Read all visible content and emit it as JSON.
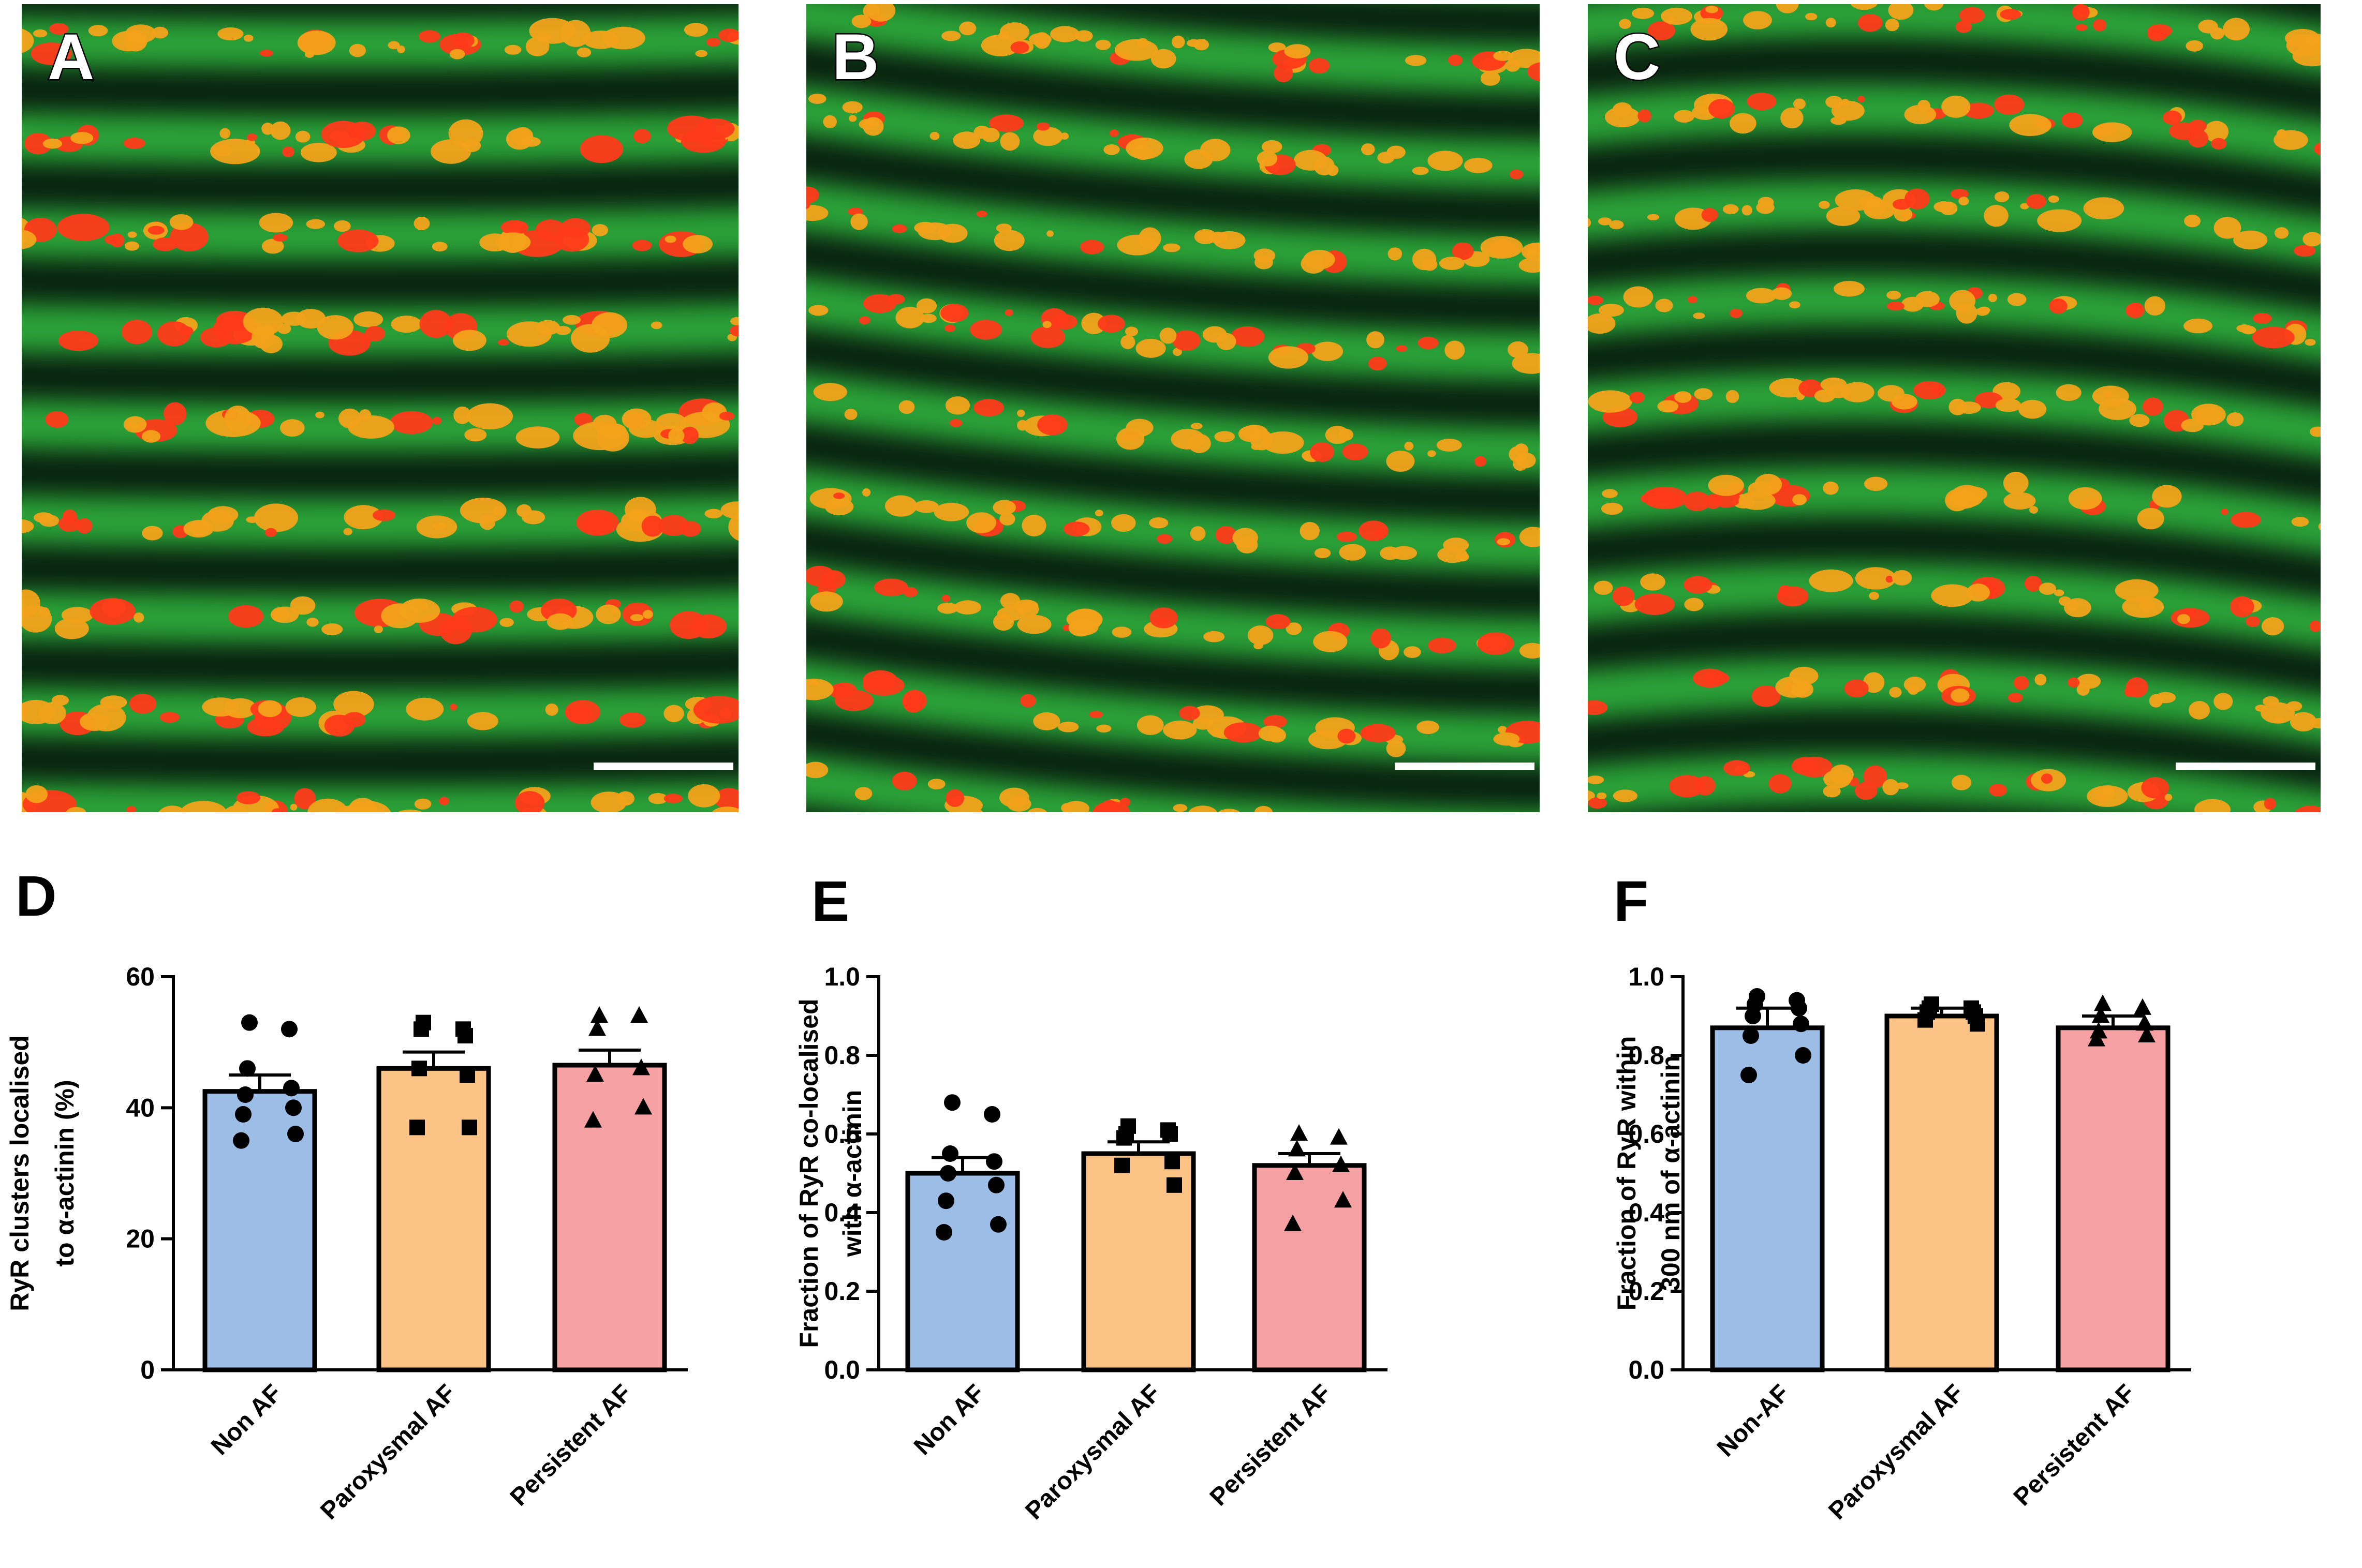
{
  "micrographs": [
    {
      "letter": "A",
      "stripe_color": "#2fae3a",
      "cluster_color": "#f2a21a",
      "spot_color": "#ff3a1a"
    },
    {
      "letter": "B",
      "stripe_color": "#2fae3a",
      "cluster_color": "#f2a21a",
      "spot_color": "#ff3a1a"
    },
    {
      "letter": "C",
      "stripe_color": "#2fae3a",
      "cluster_color": "#f2a21a",
      "spot_color": "#ff3a1a"
    }
  ],
  "colors": {
    "non_af": "#9cbde6",
    "paroxysmal": "#fbc386",
    "persistent": "#f5a0a3",
    "outline": "#000000"
  },
  "chart_data": [
    {
      "type": "bar",
      "letter": "D",
      "title": "",
      "xlabel": "",
      "ylabel_lines": [
        "RyR clusters localised",
        "to α-actinin (%)"
      ],
      "categories": [
        "Non AF",
        "Paroxysmal AF",
        "Persistent AF"
      ],
      "values": [
        42.5,
        46,
        46.5
      ],
      "sem": [
        2.5,
        2.5,
        2.3
      ],
      "ylim": [
        0,
        60
      ],
      "yticks": [
        0,
        20,
        40,
        60
      ],
      "tick_labels": [
        "0",
        "20",
        "40",
        "60"
      ],
      "markers": [
        "circle",
        "square",
        "triangle"
      ],
      "points": [
        [
          53,
          52,
          46,
          43,
          42,
          40,
          39,
          36,
          35
        ],
        [
          53,
          52,
          52,
          51,
          46,
          45,
          37,
          37
        ],
        [
          54,
          54,
          52,
          46,
          45,
          40,
          38
        ]
      ]
    },
    {
      "type": "bar",
      "letter": "E",
      "title": "",
      "xlabel": "",
      "ylabel_lines": [
        "Fraction of RyR co-localised",
        "with α-actinin"
      ],
      "categories": [
        "Non AF",
        "Paroxysmal AF",
        "Persistent AF"
      ],
      "values": [
        0.5,
        0.55,
        0.52
      ],
      "sem": [
        0.04,
        0.03,
        0.03
      ],
      "ylim": [
        0,
        1.0
      ],
      "yticks": [
        0,
        0.2,
        0.4,
        0.6,
        0.8,
        1.0
      ],
      "tick_labels": [
        "0.0",
        "0.2",
        "0.4",
        "0.6",
        "0.8",
        "1.0"
      ],
      "markers": [
        "circle",
        "square",
        "triangle"
      ],
      "points": [
        [
          0.68,
          0.65,
          0.55,
          0.53,
          0.5,
          0.47,
          0.43,
          0.37,
          0.35
        ],
        [
          0.62,
          0.61,
          0.6,
          0.6,
          0.59,
          0.53,
          0.52,
          0.47
        ],
        [
          0.6,
          0.59,
          0.56,
          0.52,
          0.5,
          0.43,
          0.37
        ]
      ]
    },
    {
      "type": "bar",
      "letter": "F",
      "title": "",
      "xlabel": "",
      "ylabel_lines": [
        "Fraction of RyR within",
        "300 nm of α-actinin"
      ],
      "categories": [
        "Non-AF",
        "Paroxysmal AF",
        "Persistent AF"
      ],
      "values": [
        0.87,
        0.9,
        0.87
      ],
      "sem": [
        0.05,
        0.02,
        0.03
      ],
      "ylim": [
        0,
        1.0
      ],
      "yticks": [
        0,
        0.2,
        0.4,
        0.6,
        0.8,
        1.0
      ],
      "tick_labels": [
        "0.0",
        "0.2",
        "0.4",
        "0.6",
        "0.8",
        "1.0"
      ],
      "markers": [
        "circle",
        "square",
        "triangle"
      ],
      "points": [
        [
          0.95,
          0.94,
          0.93,
          0.92,
          0.9,
          0.88,
          0.85,
          0.8,
          0.75
        ],
        [
          0.93,
          0.92,
          0.92,
          0.91,
          0.91,
          0.9,
          0.89,
          0.88
        ],
        [
          0.93,
          0.92,
          0.9,
          0.88,
          0.86,
          0.85,
          0.84
        ]
      ]
    }
  ]
}
